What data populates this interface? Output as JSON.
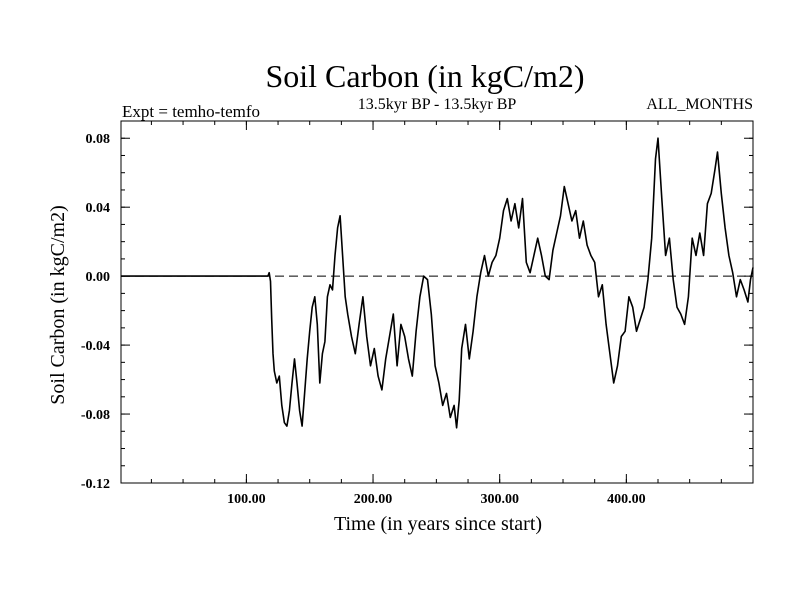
{
  "chart_data": {
    "type": "line",
    "title": "Soil Carbon (in kgC/m2)",
    "subtitle": "13.5kyr BP - 13.5kyr BP",
    "left_note": "Expt = temho-temfo",
    "right_note": "ALL_MONTHS",
    "xlabel": "Time (in years since start)",
    "ylabel": "Soil Carbon (in kgC/m2)",
    "xlim": [
      1,
      500
    ],
    "ylim": [
      -0.12,
      0.09
    ],
    "x_ticks": [
      100,
      200,
      300,
      400
    ],
    "x_tick_labels": [
      "100.00",
      "200.00",
      "300.00",
      "400.00"
    ],
    "y_ticks": [
      -0.12,
      -0.08,
      -0.04,
      0.0,
      0.04,
      0.08
    ],
    "y_tick_labels": [
      "-0.12",
      "-0.08",
      "-0.04",
      "0.00",
      "0.04",
      "0.08"
    ],
    "reference_line": 0.0,
    "series": [
      {
        "name": "temho-temfo",
        "x": [
          1,
          117,
          118,
          119,
          120,
          121,
          122,
          124,
          126,
          128,
          130,
          132,
          134,
          136,
          138,
          140,
          142,
          144,
          146,
          148,
          150,
          152,
          154,
          156,
          158,
          160,
          162,
          164,
          166,
          168,
          170,
          172,
          174,
          176,
          178,
          180,
          183,
          186,
          189,
          192,
          195,
          198,
          201,
          204,
          207,
          210,
          213,
          216,
          219,
          222,
          225,
          228,
          231,
          234,
          237,
          240,
          243,
          246,
          249,
          252,
          255,
          258,
          261,
          264,
          266,
          268,
          270,
          273,
          276,
          279,
          282,
          285,
          288,
          291,
          294,
          297,
          300,
          303,
          306,
          309,
          312,
          315,
          318,
          321,
          324,
          327,
          330,
          333,
          336,
          339,
          342,
          345,
          348,
          351,
          354,
          357,
          360,
          363,
          366,
          369,
          372,
          375,
          378,
          381,
          384,
          387,
          390,
          393,
          396,
          399,
          402,
          405,
          408,
          411,
          414,
          417,
          420,
          423,
          425,
          428,
          431,
          434,
          437,
          440,
          443,
          446,
          449,
          452,
          455,
          458,
          461,
          464,
          467,
          470,
          472,
          475,
          478,
          481,
          484,
          487,
          490,
          493,
          496,
          498,
          500
        ],
        "y": [
          0.0,
          0.0,
          0.002,
          -0.003,
          -0.025,
          -0.045,
          -0.055,
          -0.062,
          -0.058,
          -0.075,
          -0.085,
          -0.087,
          -0.078,
          -0.062,
          -0.048,
          -0.062,
          -0.078,
          -0.087,
          -0.068,
          -0.048,
          -0.032,
          -0.018,
          -0.012,
          -0.028,
          -0.062,
          -0.045,
          -0.038,
          -0.012,
          -0.005,
          -0.008,
          0.012,
          0.028,
          0.035,
          0.012,
          -0.012,
          -0.022,
          -0.035,
          -0.045,
          -0.028,
          -0.012,
          -0.035,
          -0.052,
          -0.042,
          -0.058,
          -0.066,
          -0.048,
          -0.035,
          -0.022,
          -0.052,
          -0.028,
          -0.035,
          -0.048,
          -0.058,
          -0.032,
          -0.012,
          0.0,
          -0.002,
          -0.022,
          -0.052,
          -0.062,
          -0.075,
          -0.068,
          -0.082,
          -0.075,
          -0.088,
          -0.072,
          -0.042,
          -0.028,
          -0.048,
          -0.032,
          -0.012,
          0.002,
          0.012,
          0.0,
          0.008,
          0.012,
          0.022,
          0.038,
          0.045,
          0.032,
          0.042,
          0.028,
          0.045,
          0.008,
          0.002,
          0.012,
          0.022,
          0.012,
          0.0,
          -0.002,
          0.015,
          0.025,
          0.035,
          0.052,
          0.042,
          0.032,
          0.038,
          0.022,
          0.032,
          0.018,
          0.012,
          0.008,
          -0.012,
          -0.005,
          -0.028,
          -0.045,
          -0.062,
          -0.052,
          -0.035,
          -0.032,
          -0.012,
          -0.018,
          -0.032,
          -0.025,
          -0.018,
          -0.002,
          0.022,
          0.068,
          0.08,
          0.045,
          0.012,
          0.022,
          -0.002,
          -0.018,
          -0.022,
          -0.028,
          -0.012,
          0.022,
          0.012,
          0.025,
          0.012,
          0.042,
          0.048,
          0.062,
          0.072,
          0.048,
          0.028,
          0.012,
          0.002,
          -0.012,
          -0.002,
          -0.008,
          -0.015,
          -0.002,
          0.005
        ]
      }
    ]
  }
}
